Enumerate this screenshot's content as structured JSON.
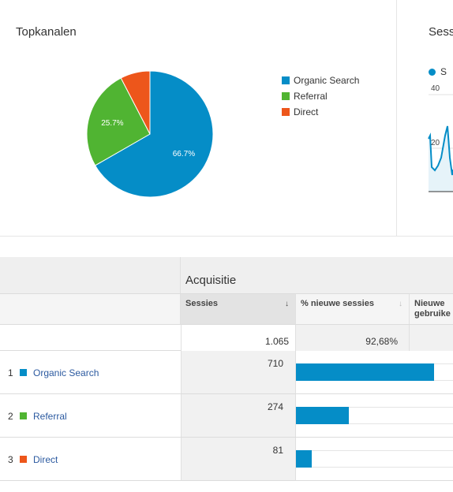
{
  "top_left": {
    "title": "Topkanalen"
  },
  "chart_data": {
    "type": "pie",
    "title": "Topkanalen",
    "slices": [
      {
        "label": "Organic Search",
        "value": 66.7,
        "color": "#058dc7",
        "display": "66.7%"
      },
      {
        "label": "Referral",
        "value": 25.7,
        "color": "#50b432",
        "display": "25.7%"
      },
      {
        "label": "Direct",
        "value": 7.6,
        "color": "#ed561b",
        "display": ""
      }
    ]
  },
  "top_right": {
    "title": "Sess",
    "legend_label": "S",
    "y_tick_top": "40",
    "y_tick_mid": "20"
  },
  "table": {
    "group_title": "Acquisitie",
    "columns": {
      "sessies": "Sessies",
      "nieuwe_sessies": "% nieuwe sessies",
      "nieuwe_gebruikers_line1": "Nieuwe",
      "nieuwe_gebruikers_line2": "gebruike"
    },
    "totals": {
      "sessies": "1.065",
      "nieuwe_sessies": "92,68%"
    },
    "rows": [
      {
        "index": "1",
        "channel": "Organic Search",
        "color": "#058dc7",
        "sessies": "710",
        "share": 0.667
      },
      {
        "index": "2",
        "channel": "Referral",
        "color": "#50b432",
        "sessies": "274",
        "share": 0.257
      },
      {
        "index": "3",
        "channel": "Direct",
        "color": "#ed561b",
        "sessies": "81",
        "share": 0.076
      }
    ]
  }
}
